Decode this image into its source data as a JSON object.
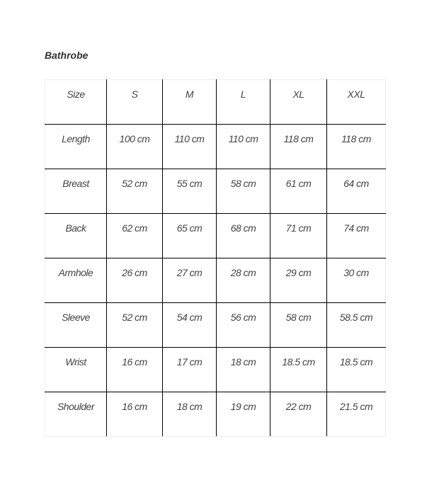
{
  "title": "Bathrobe",
  "table": {
    "rows": [
      [
        "Size",
        "S",
        "M",
        "L",
        "XL",
        "XXL"
      ],
      [
        "Length",
        "100 cm",
        "110 cm",
        "110 cm",
        "118 cm",
        "118 cm"
      ],
      [
        "Breast",
        "52 cm",
        "55 cm",
        "58 cm",
        "61 cm",
        "64 cm"
      ],
      [
        "Back",
        "62 cm",
        "65 cm",
        "68 cm",
        "71 cm",
        "74 cm"
      ],
      [
        "Armhole",
        "26 cm",
        "27 cm",
        "28 cm",
        "29 cm",
        "30 cm"
      ],
      [
        "Sleeve",
        "52 cm",
        "54 cm",
        "56 cm",
        "58 cm",
        "58.5 cm"
      ],
      [
        "Wrist",
        "16 cm",
        "17 cm",
        "18 cm",
        "18.5 cm",
        "18.5 cm"
      ],
      [
        "Shoulder",
        "16 cm",
        "18 cm",
        "19 cm",
        "22 cm",
        "21.5 cm"
      ]
    ]
  }
}
